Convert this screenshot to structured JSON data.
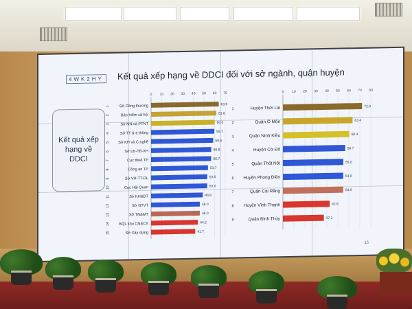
{
  "slide": {
    "brand": "4WK2HY",
    "title": "Kết quả xếp hạng về DDCI đối với sở ngành, quận huyện",
    "side_label": "Kết quả xếp hạng về DDCI",
    "slide_number": "15"
  },
  "chart_data": [
    {
      "type": "bar",
      "orientation": "horizontal",
      "xlim": [
        0,
        70
      ],
      "x_ticks": [
        "0",
        "10",
        "20",
        "30",
        "40",
        "50",
        "60",
        "70"
      ],
      "categories": [
        "Sở Công thương",
        "Bảo hiểm xã hội",
        "Sở NN và PTNT",
        "Sở TT & tt thông",
        "Sở KH và C.nghệ",
        "Sở LĐ-TB-XH",
        "Cục thuế TP",
        "Công an TP",
        "Sở VH-TT-DL",
        "Cục Hải Quan",
        "Sở KH&ĐT",
        "Sở GTVT",
        "Sở TN&MT",
        "BQL khu CN&CX",
        "Sở Xây dựng"
      ],
      "ranks": [
        "1",
        "2",
        "3",
        "4",
        "5",
        "6",
        "7",
        "8",
        "9",
        "10",
        "11",
        "12",
        "13",
        "14",
        "15"
      ],
      "values": [
        63.9,
        61.6,
        60.0,
        59.7,
        58.6,
        56.8,
        56.7,
        53.7,
        53.0,
        53.0,
        48.8,
        46.0,
        46.0,
        44.2,
        41.7
      ],
      "value_labels": [
        "63.9",
        "61.6",
        "60.0",
        "59.7",
        "58.6",
        "56.8",
        "56.7",
        "53.7",
        "53.0",
        "53.0",
        "48.8",
        "46.0",
        "46.0",
        "44.2",
        "41.7"
      ],
      "colors": [
        "#8a6a2c",
        "#c4a235",
        "#c9b128",
        "#2f57d6",
        "#2f57d6",
        "#2f57d6",
        "#2f57d6",
        "#2f57d6",
        "#2f57d6",
        "#2f57d6",
        "#2f57d6",
        "#2f57d6",
        "#b96a55",
        "#d9362e",
        "#d9362e"
      ]
    },
    {
      "type": "bar",
      "orientation": "horizontal",
      "xlim": [
        0,
        80
      ],
      "x_ticks": [
        "0",
        "10",
        "20",
        "30",
        "40",
        "50",
        "60",
        "70",
        "80"
      ],
      "categories": [
        "Huyện Thới Lai",
        "Quận Ô Môn",
        "Quận Ninh Kiều",
        "Huyện Cờ Đỏ",
        "Quận Thốt Nốt",
        "Huyện Phong Điền",
        "Quận Cái Răng",
        "Huyện Vĩnh Thạnh",
        "Quận Bình Thủy"
      ],
      "ranks": [
        "1",
        "2",
        "3",
        "4",
        "5",
        "6",
        "7",
        "8",
        "9"
      ],
      "values": [
        72.0,
        63.4,
        60.4,
        56.7,
        55.0,
        54.9,
        54.9,
        42.6,
        37.3
      ],
      "value_labels": [
        "72.0",
        "63.4",
        "60.4",
        "56.7",
        "55.0",
        "54.9",
        "54.9",
        "42.6",
        "37.3"
      ],
      "colors": [
        "#8a6a2c",
        "#c9a52c",
        "#d4c02a",
        "#2f57d6",
        "#2f57d6",
        "#2f57d6",
        "#c0705c",
        "#d9362e",
        "#d9362e"
      ]
    }
  ]
}
